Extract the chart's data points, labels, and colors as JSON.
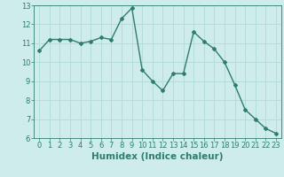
{
  "x": [
    0,
    1,
    2,
    3,
    4,
    5,
    6,
    7,
    8,
    9,
    10,
    11,
    12,
    13,
    14,
    15,
    16,
    17,
    18,
    19,
    20,
    21,
    22,
    23
  ],
  "y": [
    10.6,
    11.2,
    11.2,
    11.2,
    11.0,
    11.1,
    11.3,
    11.2,
    12.3,
    12.85,
    9.6,
    9.0,
    8.5,
    9.4,
    9.4,
    11.6,
    11.1,
    10.7,
    10.0,
    8.8,
    7.5,
    7.0,
    6.5,
    6.25
  ],
  "line_color": "#2e7d6e",
  "marker": "D",
  "marker_size": 2.0,
  "bg_color": "#cdecea",
  "grid_color": "#b0dbd8",
  "xlabel": "Humidex (Indice chaleur)",
  "xlabel_fontsize": 7.5,
  "xlabel_color": "#2e7d6e",
  "ylim": [
    6,
    13
  ],
  "xlim": [
    -0.5,
    23.5
  ],
  "yticks": [
    6,
    7,
    8,
    9,
    10,
    11,
    12,
    13
  ],
  "xticks": [
    0,
    1,
    2,
    3,
    4,
    5,
    6,
    7,
    8,
    9,
    10,
    11,
    12,
    13,
    14,
    15,
    16,
    17,
    18,
    19,
    20,
    21,
    22,
    23
  ],
  "tick_fontsize": 6.0,
  "tick_color": "#2e7d6e",
  "spine_color": "#2e7d6e",
  "linewidth": 1.0
}
